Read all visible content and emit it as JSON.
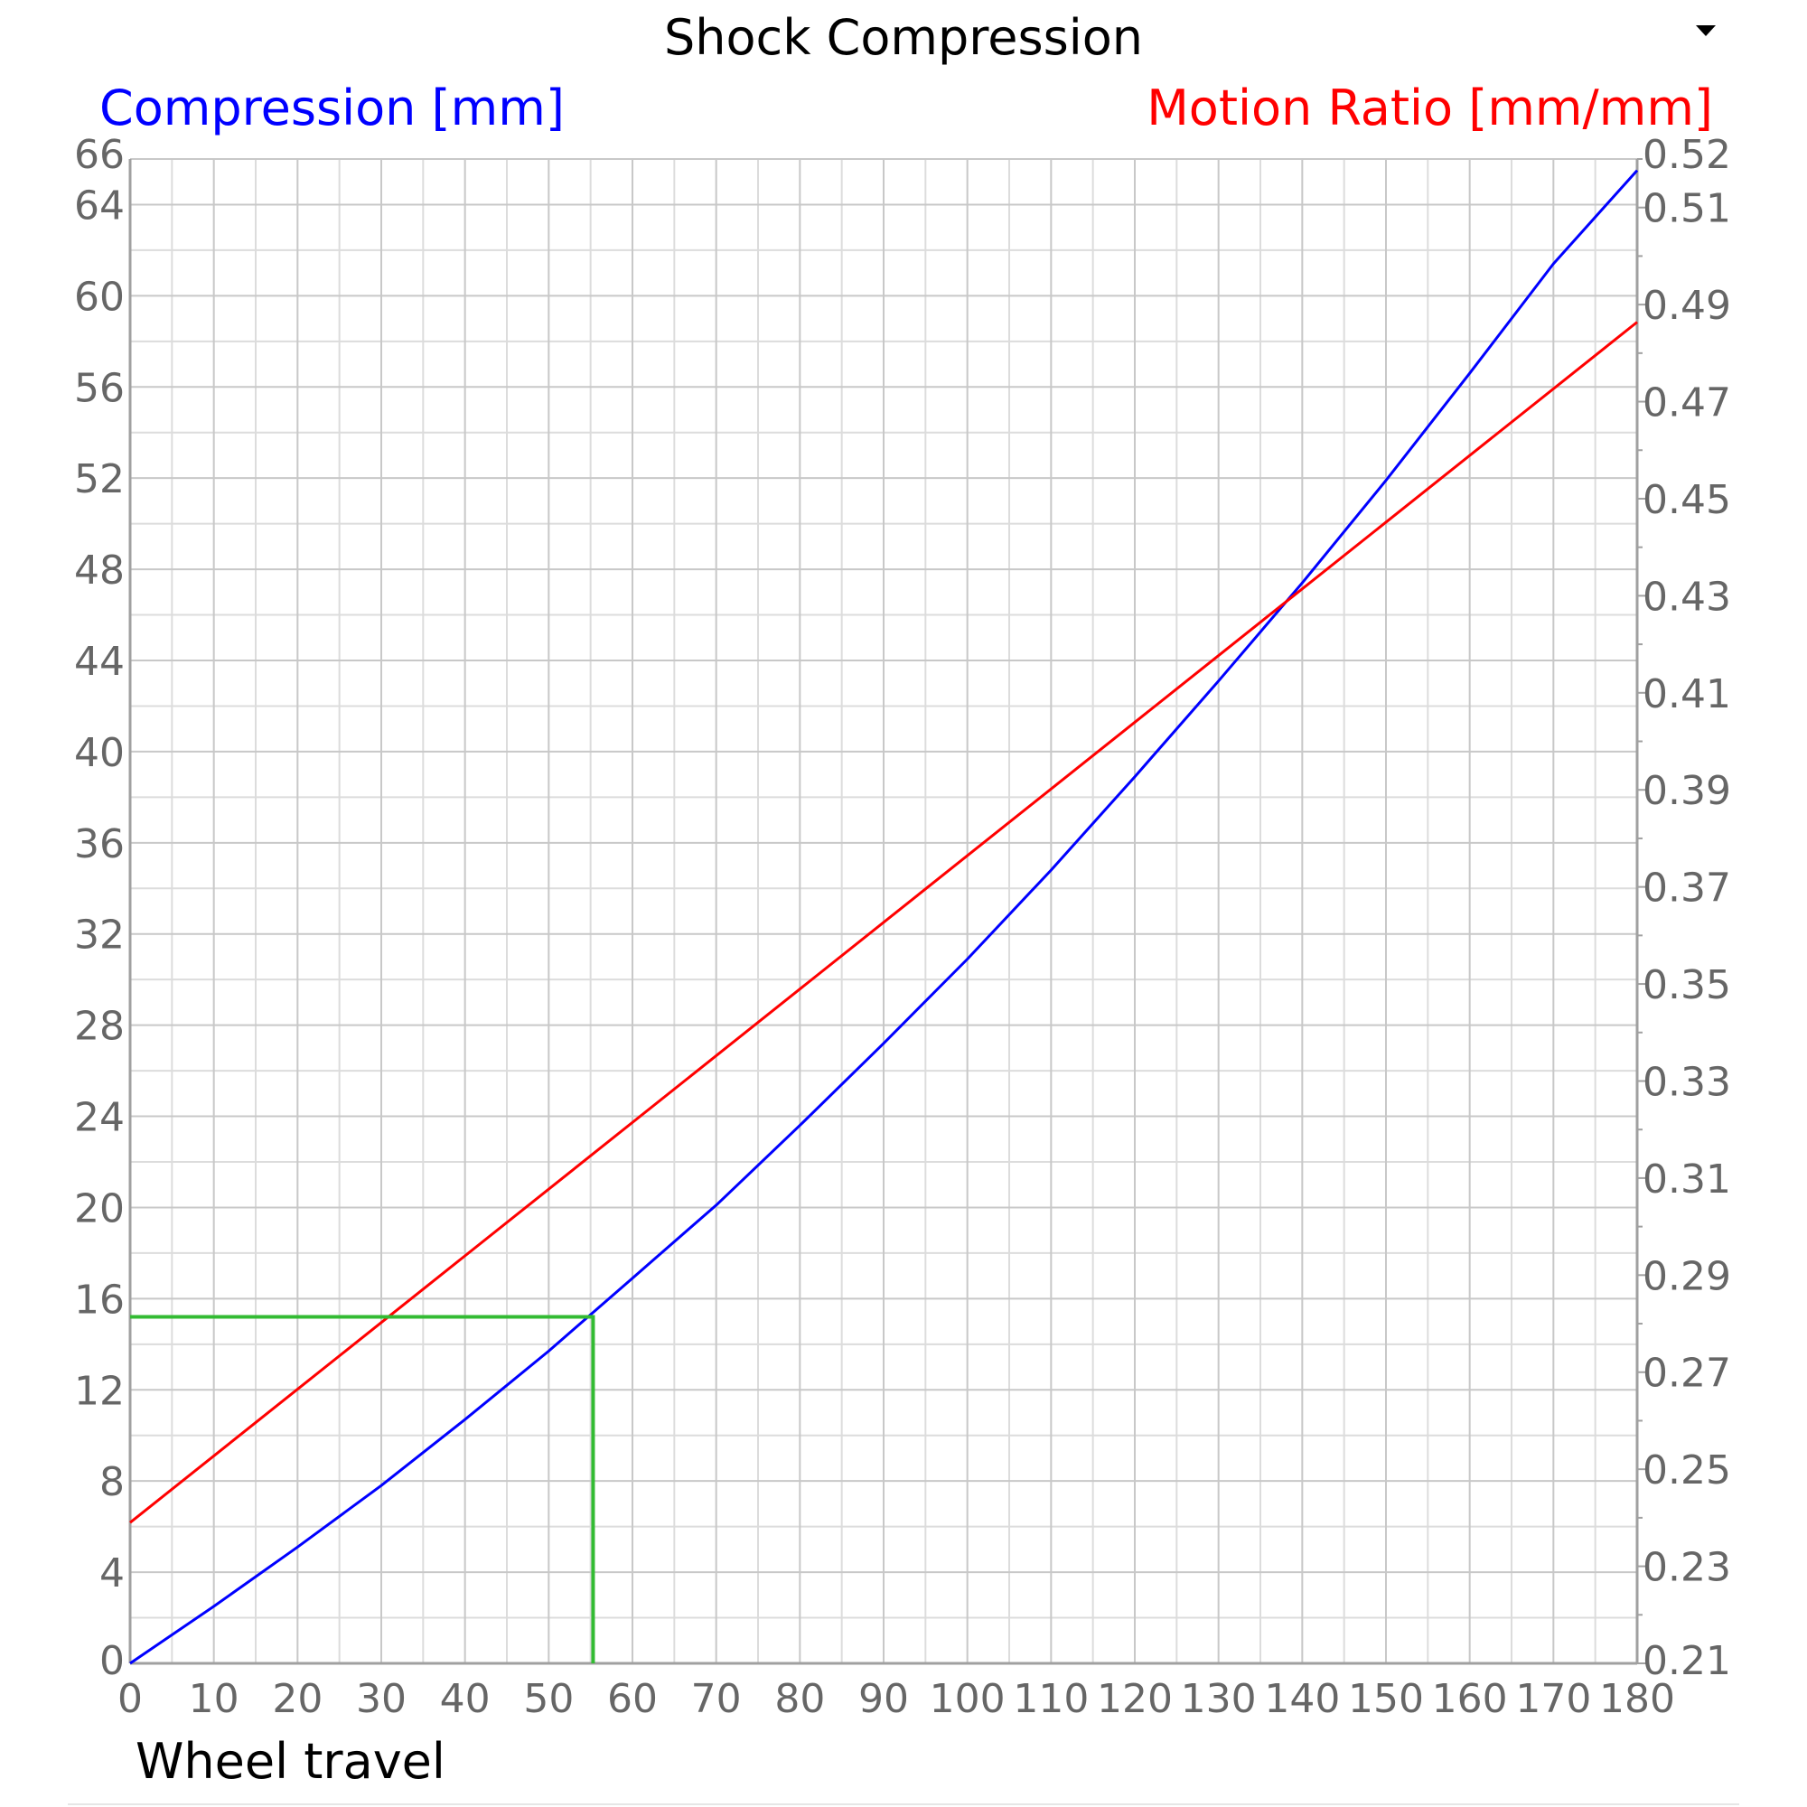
{
  "chart_data": {
    "type": "line",
    "title": "Shock Compression",
    "xlabel": "Wheel travel",
    "ylabel": "Compression [mm]",
    "y2label": "Motion Ratio [mm/mm]",
    "xlim": [
      0,
      180
    ],
    "ylim": [
      0,
      66
    ],
    "y2lim": [
      0.21,
      0.52
    ],
    "x_ticks": [
      0,
      10,
      20,
      30,
      40,
      50,
      60,
      70,
      80,
      90,
      100,
      110,
      120,
      130,
      140,
      150,
      160,
      170,
      180
    ],
    "y_ticks": [
      0,
      4,
      8,
      12,
      16,
      20,
      24,
      28,
      32,
      36,
      40,
      44,
      48,
      52,
      56,
      60,
      64,
      66
    ],
    "y2_ticks": [
      0.21,
      0.23,
      0.25,
      0.27,
      0.29,
      0.31,
      0.33,
      0.35,
      0.37,
      0.39,
      0.41,
      0.43,
      0.45,
      0.47,
      0.49,
      0.51,
      0.52
    ],
    "grid": true,
    "series": [
      {
        "axis": "left",
        "color": "#0000ff",
        "x": [
          0,
          10,
          20,
          30,
          40,
          50,
          55,
          60,
          70,
          80,
          90,
          100,
          110,
          120,
          130,
          140,
          150,
          160,
          170,
          180
        ],
        "y": [
          0.0,
          2.5,
          5.1,
          7.8,
          10.7,
          13.7,
          15.3,
          16.9,
          20.1,
          23.6,
          27.2,
          30.9,
          34.8,
          38.9,
          43.1,
          47.4,
          51.9,
          56.6,
          61.4,
          65.5
        ]
      },
      {
        "axis": "right",
        "color": "#ff0000",
        "x": [
          0,
          180
        ],
        "y": [
          0.239,
          0.4864
        ]
      }
    ],
    "annotations": [
      {
        "type": "crosshair",
        "color": "#33bb33",
        "x": 55.3,
        "y": 15.2
      }
    ]
  }
}
